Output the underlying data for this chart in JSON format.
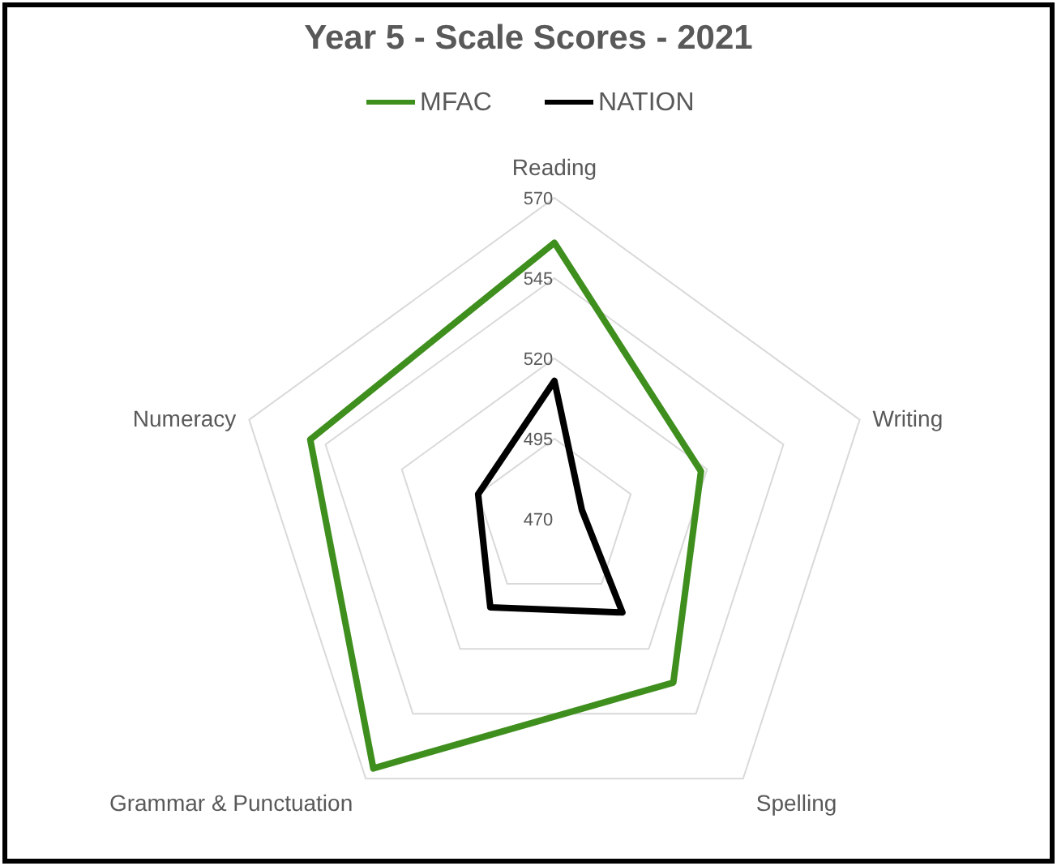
{
  "chart_data": {
    "type": "radar",
    "title": "Year 5 - Scale Scores - 2021",
    "categories": [
      "Reading",
      "Writing",
      "Spelling",
      "Grammar & Punctuation",
      "Numeracy"
    ],
    "series": [
      {
        "name": "MFAC",
        "color": "#3f8f1e",
        "values": [
          556,
          518,
          533,
          566,
          550
        ]
      },
      {
        "name": "NATION",
        "color": "#000000",
        "values": [
          513,
          479,
          506,
          504,
          495
        ]
      }
    ],
    "ylim": [
      470,
      570
    ],
    "yticks": [
      470,
      495,
      520,
      545,
      570
    ],
    "legend": "top",
    "grid": true
  }
}
